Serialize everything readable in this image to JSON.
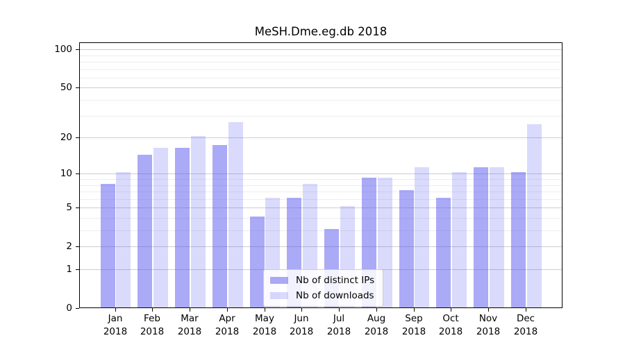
{
  "chart_data": {
    "type": "bar",
    "title": "MeSH.Dme.eg.db 2018",
    "year": "2018",
    "months": [
      "Jan",
      "Feb",
      "Mar",
      "Apr",
      "May",
      "Jun",
      "Jul",
      "Aug",
      "Sep",
      "Oct",
      "Nov",
      "Dec"
    ],
    "categories": [
      "Jan 2018",
      "Feb 2018",
      "Mar 2018",
      "Apr 2018",
      "May 2018",
      "Jun 2018",
      "Jul 2018",
      "Aug 2018",
      "Sep 2018",
      "Oct 2018",
      "Nov 2018",
      "Dec 2018"
    ],
    "series": [
      {
        "name": "Nb of distinct IPs",
        "color": "rgba(85,85,240,0.5)",
        "values": [
          8,
          14,
          16,
          17,
          4,
          6,
          3,
          9,
          7,
          6,
          11,
          10
        ]
      },
      {
        "name": "Nb of downloads",
        "color": "rgba(85,85,240,0.22)",
        "values": [
          10,
          16,
          20,
          26,
          6,
          8,
          5,
          9,
          11,
          10,
          11,
          25
        ]
      }
    ],
    "yscale": "log1p",
    "y_major_ticks": [
      0,
      1,
      2,
      5,
      10,
      20,
      50,
      100
    ],
    "y_minor_ticks": [
      3,
      4,
      6,
      7,
      8,
      9,
      30,
      40,
      60,
      70,
      80,
      90
    ],
    "ylim": [
      0,
      113
    ],
    "grid": true,
    "legend_position": "lower center",
    "colors": {
      "grid_major": "#cdcdcd",
      "grid_minor": "#ededed",
      "axis": "#000000"
    }
  }
}
